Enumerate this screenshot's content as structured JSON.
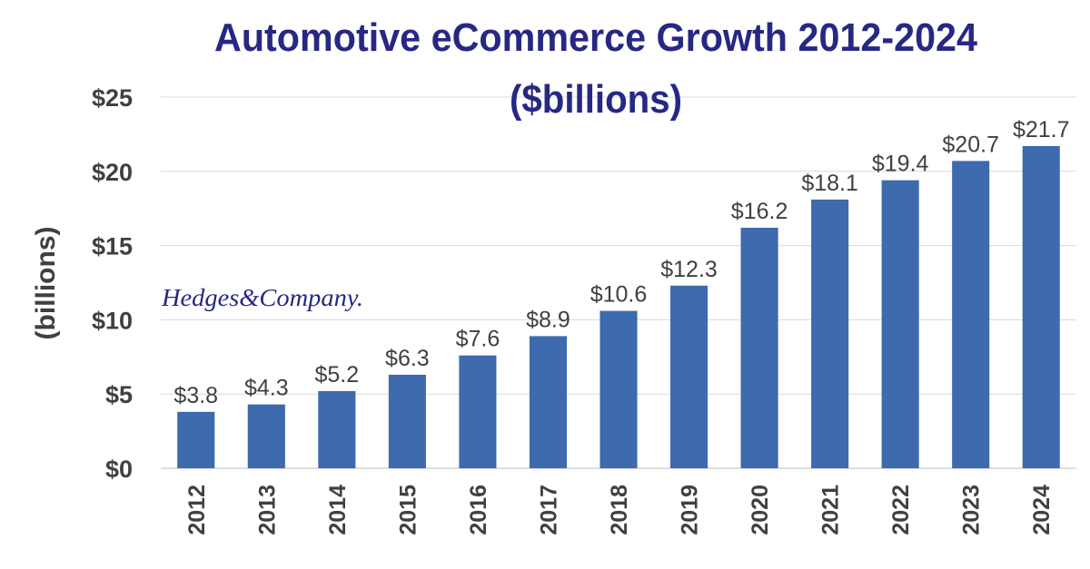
{
  "chart_data": {
    "type": "bar",
    "title": "Automotive eCommerce Growth 2012-2024",
    "subtitle": "($billions)",
    "ylabel": "(billions)",
    "xlabel": "",
    "categories": [
      "2012",
      "2013",
      "2014",
      "2015",
      "2016",
      "2017",
      "2018",
      "2019",
      "2020",
      "2021",
      "2022",
      "2023",
      "2024"
    ],
    "values": [
      3.8,
      4.3,
      5.2,
      6.3,
      7.6,
      8.9,
      10.6,
      12.3,
      16.2,
      18.1,
      19.4,
      20.7,
      21.7
    ],
    "data_labels": [
      "$3.8",
      "$4.3",
      "$5.2",
      "$6.3",
      "$7.6",
      "$8.9",
      "$10.6",
      "$12.3",
      "$16.2",
      "$18.1",
      "$19.4",
      "$20.7",
      "$21.7"
    ],
    "ylim": [
      0,
      25
    ],
    "yticks": [
      0,
      5,
      10,
      15,
      20,
      25
    ],
    "ytick_labels": [
      "$0",
      "$5",
      "$10",
      "$15",
      "$20",
      "$25"
    ],
    "grid": true,
    "bar_color": "#3e6aae",
    "title_color": "#262883"
  },
  "logo": {
    "text": "Hedges&Company."
  }
}
